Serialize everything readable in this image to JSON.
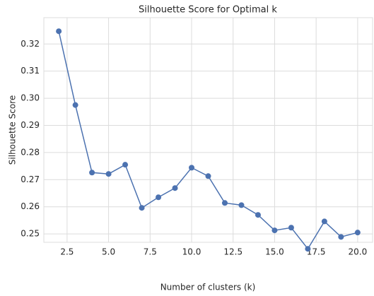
{
  "chart_data": {
    "type": "line",
    "title": "Silhouette Score for Optimal k",
    "x_label": "Number of clusters (k)",
    "y_label": "Silhouette Score",
    "x": [
      2,
      3,
      4,
      5,
      6,
      7,
      8,
      9,
      10,
      11,
      12,
      13,
      14,
      15,
      16,
      17,
      18,
      19,
      20
    ],
    "series": [
      {
        "color": "#4c72b0",
        "values": [
          0.3247,
          0.2975,
          0.2726,
          0.2721,
          0.2755,
          0.2596,
          0.2635,
          0.2669,
          0.2744,
          0.2713,
          0.2614,
          0.2606,
          0.257,
          0.2513,
          0.2523,
          0.2445,
          0.2546,
          0.2489,
          0.2505
        ]
      }
    ],
    "xlim": [
      1.1,
      20.9
    ],
    "xticks": [
      2.5,
      {
        "value": 5,
        "label": "5.0"
      },
      7.5,
      {
        "value": 10,
        "label": "10.0"
      },
      12.5,
      {
        "value": 15,
        "label": "15.0"
      },
      17.5,
      {
        "value": 20,
        "label": "20.0"
      }
    ],
    "ylim": [
      0.2469,
      0.3297
    ],
    "yticks": [
      0.25,
      0.26,
      0.27,
      0.28,
      0.29,
      {
        "value": 0.3,
        "label": "0.30"
      },
      0.31,
      0.32
    ],
    "grid": true
  }
}
